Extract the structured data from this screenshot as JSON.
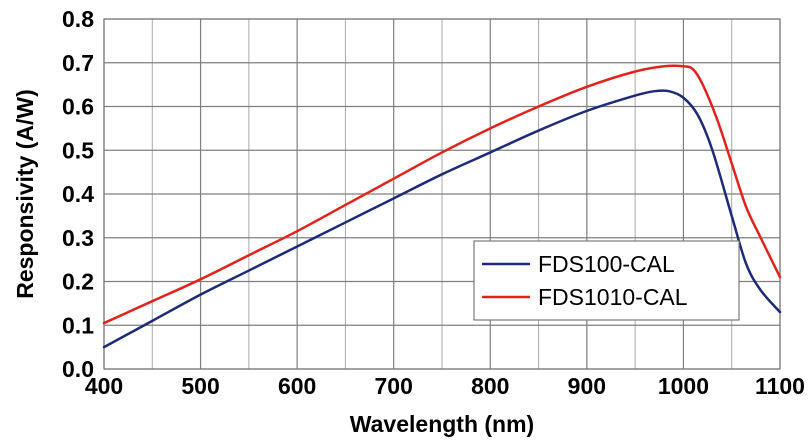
{
  "chart_data": {
    "type": "line",
    "xlabel": "Wavelength (nm)",
    "ylabel": "Responsivity (A/W)",
    "xlim": [
      400,
      1100
    ],
    "ylim": [
      0.0,
      0.8
    ],
    "x_ticks": [
      400,
      500,
      600,
      700,
      800,
      900,
      1000,
      1100
    ],
    "x_tick_labels": [
      "400",
      "500",
      "600",
      "700",
      "800",
      "900",
      "1000",
      "1100"
    ],
    "y_ticks": [
      0.0,
      0.1,
      0.2,
      0.3,
      0.4,
      0.5,
      0.6,
      0.7,
      0.8
    ],
    "y_tick_labels": [
      "0.0",
      "0.1",
      "0.2",
      "0.3",
      "0.4",
      "0.5",
      "0.6",
      "0.7",
      "0.8"
    ],
    "x_minor_step": 50,
    "grid": true,
    "legend_position": "lower-right",
    "series": [
      {
        "name": "FDS100-CAL",
        "color": "#1f2a7a",
        "x": [
          400,
          450,
          500,
          550,
          600,
          650,
          700,
          750,
          800,
          850,
          900,
          950,
          970,
          985,
          1000,
          1015,
          1030,
          1050,
          1065,
          1080,
          1100
        ],
        "y": [
          0.05,
          0.11,
          0.17,
          0.225,
          0.28,
          0.335,
          0.39,
          0.445,
          0.495,
          0.545,
          0.59,
          0.625,
          0.635,
          0.635,
          0.62,
          0.58,
          0.5,
          0.35,
          0.24,
          0.18,
          0.13
        ]
      },
      {
        "name": "FDS1010-CAL",
        "color": "#e4221b",
        "x": [
          400,
          450,
          500,
          550,
          600,
          650,
          700,
          750,
          800,
          850,
          900,
          950,
          980,
          1000,
          1010,
          1020,
          1035,
          1050,
          1065,
          1080,
          1100
        ],
        "y": [
          0.105,
          0.155,
          0.205,
          0.26,
          0.315,
          0.375,
          0.435,
          0.495,
          0.55,
          0.6,
          0.645,
          0.68,
          0.692,
          0.692,
          0.685,
          0.65,
          0.57,
          0.47,
          0.37,
          0.3,
          0.21
        ]
      }
    ]
  }
}
